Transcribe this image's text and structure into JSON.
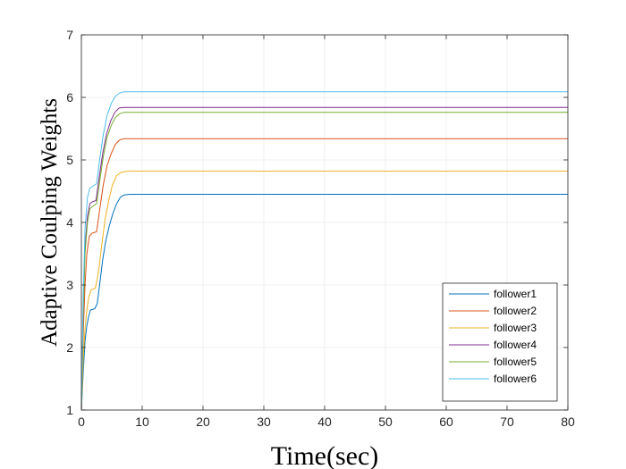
{
  "chart_data": {
    "type": "line",
    "title": "",
    "xlabel": "Time(sec)",
    "ylabel": "Adaptive Coulping Weights",
    "xlim": [
      0,
      80
    ],
    "ylim": [
      1,
      7
    ],
    "xticks": [
      0,
      10,
      20,
      30,
      40,
      50,
      60,
      70,
      80
    ],
    "yticks": [
      1,
      2,
      3,
      4,
      5,
      6,
      7
    ],
    "grid": true,
    "legend_position": "bottom-right",
    "series": [
      {
        "name": "follower1",
        "color": "#0072BD",
        "points": [
          [
            0,
            1.0
          ],
          [
            0.3,
            1.6
          ],
          [
            0.6,
            2.1
          ],
          [
            0.9,
            2.35
          ],
          [
            1.2,
            2.5
          ],
          [
            1.5,
            2.6
          ],
          [
            2.2,
            2.62
          ],
          [
            2.6,
            2.7
          ],
          [
            3.0,
            3.0
          ],
          [
            3.5,
            3.4
          ],
          [
            4.0,
            3.7
          ],
          [
            4.6,
            3.95
          ],
          [
            5.2,
            4.15
          ],
          [
            5.8,
            4.3
          ],
          [
            6.4,
            4.4
          ],
          [
            7.0,
            4.44
          ],
          [
            8.0,
            4.45
          ],
          [
            80,
            4.45
          ]
        ]
      },
      {
        "name": "follower2",
        "color": "#D95319",
        "points": [
          [
            0,
            1.0
          ],
          [
            0.3,
            2.2
          ],
          [
            0.6,
            3.0
          ],
          [
            0.9,
            3.5
          ],
          [
            1.3,
            3.78
          ],
          [
            1.8,
            3.83
          ],
          [
            2.5,
            3.85
          ],
          [
            3.0,
            4.2
          ],
          [
            3.6,
            4.6
          ],
          [
            4.2,
            4.9
          ],
          [
            4.9,
            5.1
          ],
          [
            5.6,
            5.25
          ],
          [
            6.3,
            5.32
          ],
          [
            7.0,
            5.34
          ],
          [
            8.0,
            5.34
          ],
          [
            80,
            5.34
          ]
        ]
      },
      {
        "name": "follower3",
        "color": "#EDB120",
        "points": [
          [
            0,
            1.0
          ],
          [
            0.3,
            1.8
          ],
          [
            0.6,
            2.3
          ],
          [
            0.9,
            2.6
          ],
          [
            1.2,
            2.8
          ],
          [
            1.6,
            2.92
          ],
          [
            2.3,
            2.95
          ],
          [
            2.8,
            3.2
          ],
          [
            3.3,
            3.6
          ],
          [
            3.9,
            4.05
          ],
          [
            4.5,
            4.35
          ],
          [
            5.1,
            4.6
          ],
          [
            5.8,
            4.75
          ],
          [
            6.5,
            4.8
          ],
          [
            7.5,
            4.82
          ],
          [
            80,
            4.82
          ]
        ]
      },
      {
        "name": "follower4",
        "color": "#7E2F8E",
        "points": [
          [
            0,
            1.0
          ],
          [
            0.3,
            2.6
          ],
          [
            0.6,
            3.6
          ],
          [
            1.0,
            4.1
          ],
          [
            1.4,
            4.3
          ],
          [
            1.8,
            4.33
          ],
          [
            2.4,
            4.35
          ],
          [
            2.9,
            4.7
          ],
          [
            3.5,
            5.1
          ],
          [
            4.1,
            5.4
          ],
          [
            4.8,
            5.62
          ],
          [
            5.5,
            5.76
          ],
          [
            6.2,
            5.83
          ],
          [
            7.0,
            5.84
          ],
          [
            8.0,
            5.84
          ],
          [
            80,
            5.84
          ]
        ]
      },
      {
        "name": "follower5",
        "color": "#77AC30",
        "points": [
          [
            0,
            1.0
          ],
          [
            0.3,
            2.5
          ],
          [
            0.6,
            3.5
          ],
          [
            1.0,
            4.0
          ],
          [
            1.4,
            4.22
          ],
          [
            1.9,
            4.26
          ],
          [
            2.5,
            4.3
          ],
          [
            3.0,
            4.65
          ],
          [
            3.6,
            5.05
          ],
          [
            4.2,
            5.35
          ],
          [
            4.9,
            5.55
          ],
          [
            5.6,
            5.68
          ],
          [
            6.3,
            5.74
          ],
          [
            7.0,
            5.76
          ],
          [
            8.0,
            5.76
          ],
          [
            80,
            5.76
          ]
        ]
      },
      {
        "name": "follower6",
        "color": "#4DBEEE",
        "points": [
          [
            0,
            1.0
          ],
          [
            0.3,
            2.8
          ],
          [
            0.6,
            3.9
          ],
          [
            1.0,
            4.4
          ],
          [
            1.4,
            4.55
          ],
          [
            1.9,
            4.58
          ],
          [
            2.5,
            4.62
          ],
          [
            3.0,
            5.0
          ],
          [
            3.6,
            5.4
          ],
          [
            4.2,
            5.7
          ],
          [
            4.9,
            5.9
          ],
          [
            5.6,
            6.02
          ],
          [
            6.3,
            6.07
          ],
          [
            7.0,
            6.09
          ],
          [
            8.0,
            6.09
          ],
          [
            80,
            6.09
          ]
        ]
      }
    ]
  }
}
